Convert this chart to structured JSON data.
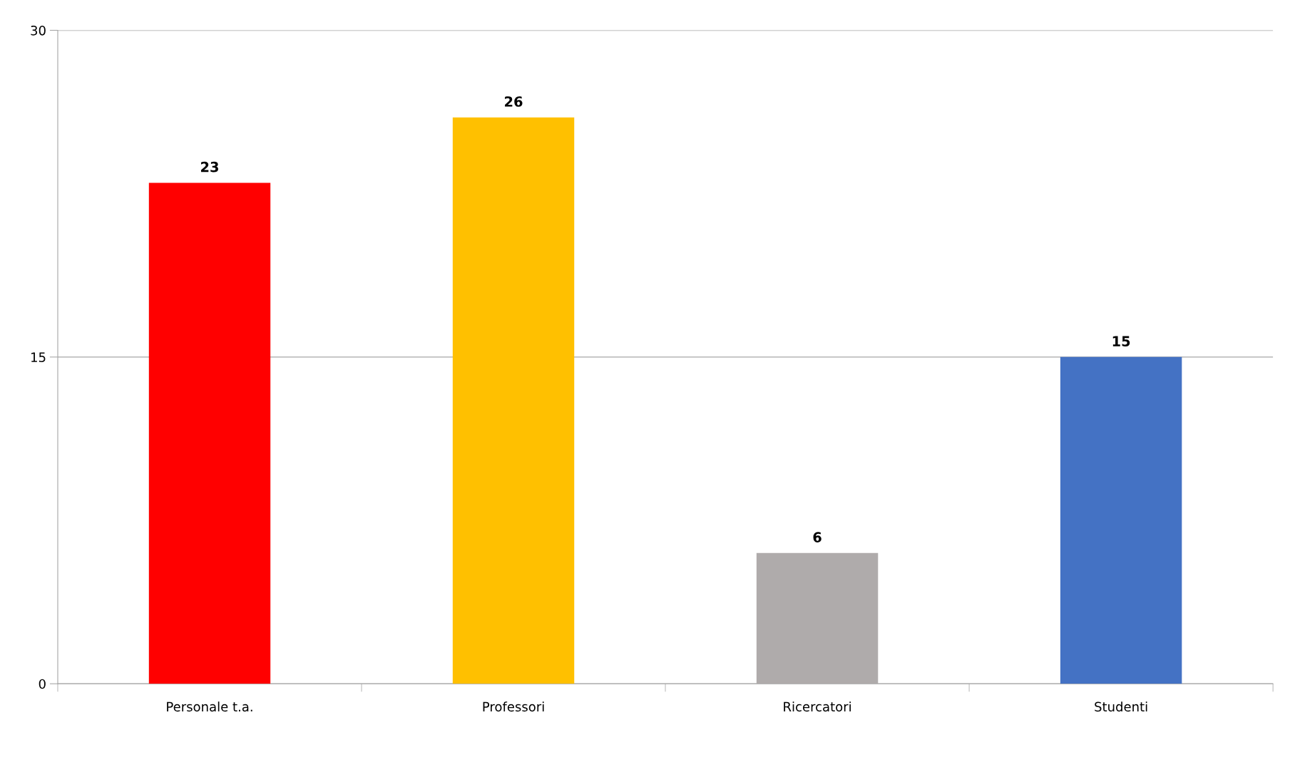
{
  "chart_data": {
    "type": "bar",
    "categories": [
      "Personale t.a.",
      "Professori",
      "Ricercatori",
      "Studenti"
    ],
    "values": [
      23,
      26,
      6,
      15
    ],
    "colors": [
      "#ff0000",
      "#ffc000",
      "#afabab",
      "#4472c4"
    ],
    "ylim": [
      0,
      30
    ],
    "yticks": [
      0,
      15,
      30
    ],
    "grid": "y",
    "data_labels": true
  }
}
